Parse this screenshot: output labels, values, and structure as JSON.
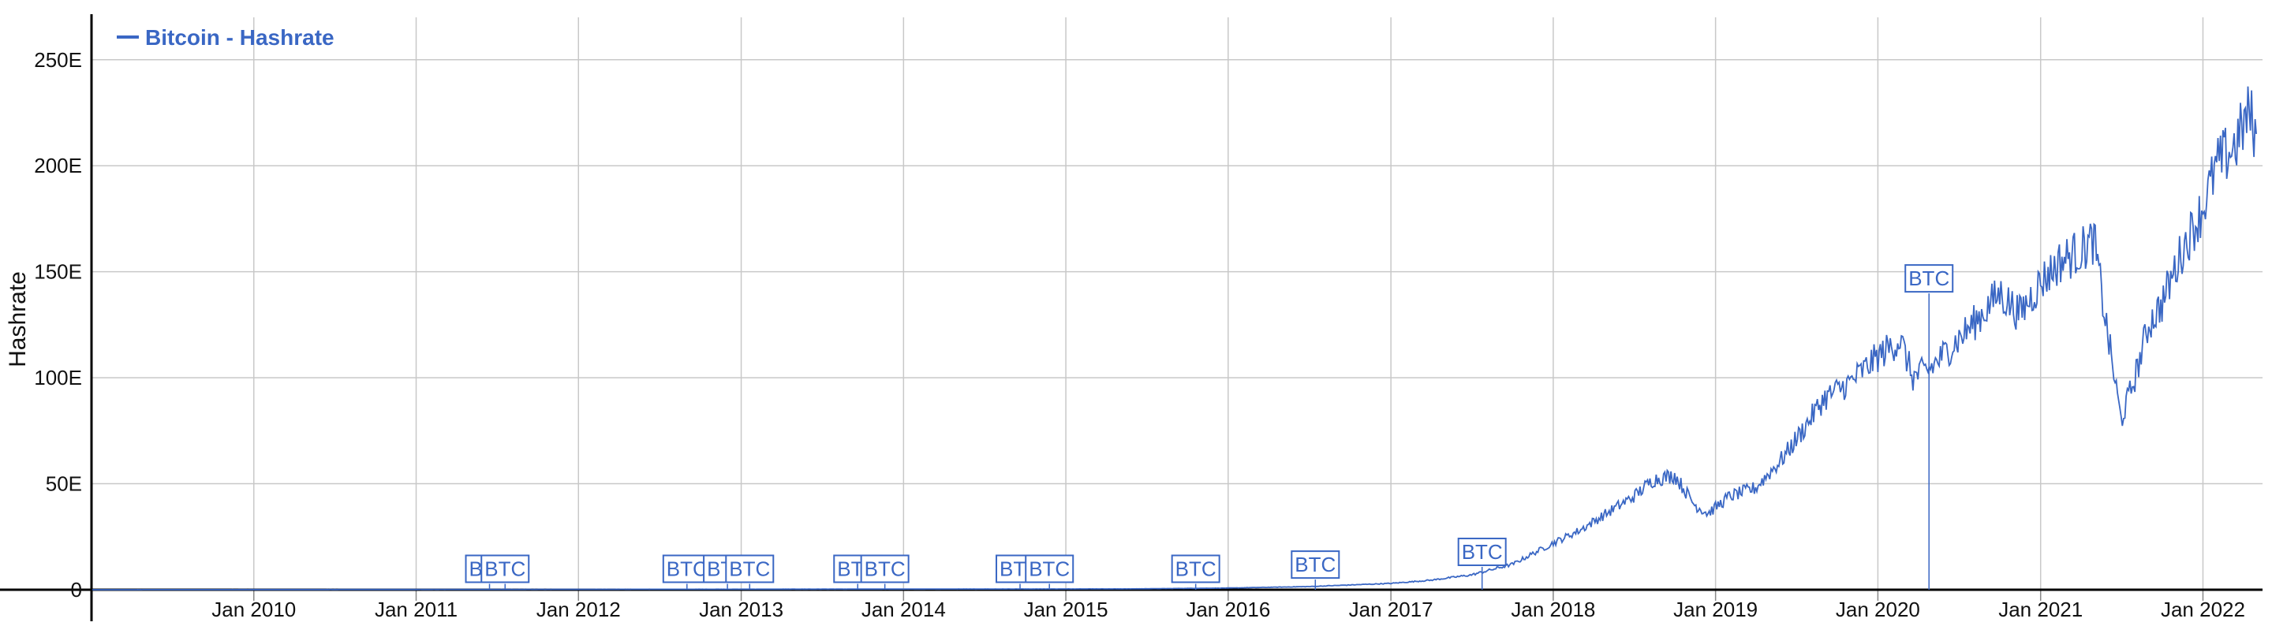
{
  "chart_data": {
    "type": "line",
    "ylabel": "Hashrate",
    "xlabel": "",
    "legend": {
      "position": "top-left",
      "label": "Bitcoin - Hashrate"
    },
    "grid": true,
    "ylim": [
      0,
      270
    ],
    "xlim": [
      "2009-01-01",
      "2022-05-15"
    ],
    "y_ticks": [
      {
        "value": 0,
        "label": "0"
      },
      {
        "value": 50,
        "label": "50E"
      },
      {
        "value": 100,
        "label": "100E"
      },
      {
        "value": 150,
        "label": "150E"
      },
      {
        "value": 200,
        "label": "200E"
      },
      {
        "value": 250,
        "label": "250E"
      }
    ],
    "x_ticks": [
      {
        "date": "2010-01-01",
        "label": "Jan 2010"
      },
      {
        "date": "2011-01-01",
        "label": "Jan 2011"
      },
      {
        "date": "2012-01-01",
        "label": "Jan 2012"
      },
      {
        "date": "2013-01-01",
        "label": "Jan 2013"
      },
      {
        "date": "2014-01-01",
        "label": "Jan 2014"
      },
      {
        "date": "2015-01-01",
        "label": "Jan 2015"
      },
      {
        "date": "2016-01-01",
        "label": "Jan 2016"
      },
      {
        "date": "2017-01-01",
        "label": "Jan 2017"
      },
      {
        "date": "2018-01-01",
        "label": "Jan 2018"
      },
      {
        "date": "2019-01-01",
        "label": "Jan 2019"
      },
      {
        "date": "2020-01-01",
        "label": "Jan 2020"
      },
      {
        "date": "2021-01-01",
        "label": "Jan 2021"
      },
      {
        "date": "2022-01-01",
        "label": "Jan 2022"
      }
    ],
    "series": [
      {
        "name": "Bitcoin - Hashrate",
        "color": "#3a67c4",
        "points": [
          [
            "2009-01-03",
            0
          ],
          [
            "2015-06-01",
            0.4
          ],
          [
            "2016-01-01",
            0.8
          ],
          [
            "2016-07-01",
            1.5
          ],
          [
            "2017-01-01",
            3
          ],
          [
            "2017-04-01",
            4.5
          ],
          [
            "2017-07-01",
            7
          ],
          [
            "2017-10-01",
            12
          ],
          [
            "2018-01-01",
            22
          ],
          [
            "2018-03-01",
            28
          ],
          [
            "2018-05-01",
            36
          ],
          [
            "2018-07-01",
            44
          ],
          [
            "2018-08-15",
            52
          ],
          [
            "2018-10-01",
            54
          ],
          [
            "2018-11-15",
            40
          ],
          [
            "2018-12-15",
            36
          ],
          [
            "2019-02-01",
            44
          ],
          [
            "2019-04-01",
            48
          ],
          [
            "2019-06-01",
            62
          ],
          [
            "2019-07-15",
            75
          ],
          [
            "2019-09-01",
            90
          ],
          [
            "2019-11-01",
            98
          ],
          [
            "2020-01-01",
            110
          ],
          [
            "2020-02-20",
            118
          ],
          [
            "2020-03-20",
            100
          ],
          [
            "2020-05-01",
            105
          ],
          [
            "2020-06-15",
            115
          ],
          [
            "2020-08-01",
            125
          ],
          [
            "2020-10-01",
            140
          ],
          [
            "2020-11-15",
            130
          ],
          [
            "2021-01-01",
            145
          ],
          [
            "2021-02-15",
            155
          ],
          [
            "2021-04-01",
            160
          ],
          [
            "2021-05-01",
            165
          ],
          [
            "2021-06-01",
            120
          ],
          [
            "2021-07-01",
            80
          ],
          [
            "2021-08-01",
            100
          ],
          [
            "2021-09-01",
            125
          ],
          [
            "2021-10-01",
            135
          ],
          [
            "2021-11-15",
            160
          ],
          [
            "2022-01-01",
            180
          ],
          [
            "2022-02-01",
            200
          ],
          [
            "2022-03-15",
            210
          ],
          [
            "2022-04-15",
            225
          ],
          [
            "2022-05-01",
            215
          ]
        ]
      }
    ],
    "markers": [
      {
        "date": "2011-06-15",
        "label": "BTC",
        "y": 8
      },
      {
        "date": "2011-07-20",
        "label": "BTC",
        "y": 8
      },
      {
        "date": "2012-09-01",
        "label": "BTC",
        "y": 8
      },
      {
        "date": "2012-12-01",
        "label": "BTC",
        "y": 8
      },
      {
        "date": "2013-01-20",
        "label": "BTC",
        "y": 8
      },
      {
        "date": "2013-09-20",
        "label": "BTC",
        "y": 8
      },
      {
        "date": "2013-11-20",
        "label": "BTC",
        "y": 8
      },
      {
        "date": "2014-09-20",
        "label": "BTC",
        "y": 8
      },
      {
        "date": "2014-11-25",
        "label": "BTC",
        "y": 8
      },
      {
        "date": "2015-10-20",
        "label": "BTC",
        "y": 8
      },
      {
        "date": "2016-07-15",
        "label": "BTC",
        "y": 10
      },
      {
        "date": "2017-07-25",
        "label": "BTC",
        "y": 16
      },
      {
        "date": "2020-04-25",
        "label": "BTC",
        "y": 145
      }
    ]
  }
}
